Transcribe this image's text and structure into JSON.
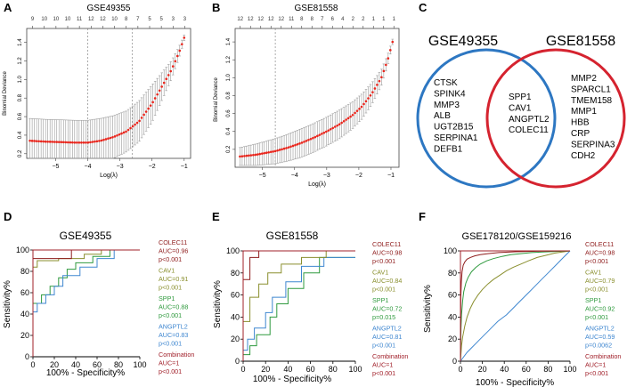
{
  "panel_letters": [
    "A",
    "B",
    "C",
    "D",
    "E",
    "F"
  ],
  "colors": {
    "lasso_points": "#e8261d",
    "lasso_bars": "#9a9a9a",
    "venn_left": "#2d77c2",
    "venn_right": "#d5232f",
    "colec11": "#8f1d1d",
    "cav1": "#8a8f2e",
    "spp1": "#2f9a3e",
    "angptl2": "#3f87d0",
    "combination": "#a1202a"
  },
  "chart_data": [
    {
      "type": "line",
      "panel": "A",
      "title": "GSE49355",
      "xlabel": "Log(λ)",
      "ylabel": "Binomial Deviance",
      "xlim": [
        -5.9,
        -0.8
      ],
      "ylim": [
        0.15,
        1.55
      ],
      "x_ticks": [
        -5,
        -4,
        -3,
        -2,
        -1
      ],
      "y_ticks": [
        0.2,
        0.4,
        0.6,
        0.8,
        1.0,
        1.2,
        1.4
      ],
      "y_tick_labels": [
        "0.2",
        "0.4",
        "0.6",
        "0.8",
        "1.0",
        "1.2",
        "1.4"
      ],
      "top_tick_labels": [
        "9",
        "10",
        "10",
        "10",
        "11",
        "12",
        "12",
        "10",
        "8",
        "7",
        "5",
        "5",
        "3",
        "3"
      ],
      "vlines": [
        -4.0,
        -2.62
      ],
      "x": [
        -5.8,
        -5.3,
        -4.8,
        -4.4,
        -4.0,
        -3.6,
        -3.2,
        -2.8,
        -2.4,
        -2.0,
        -1.7,
        -1.4,
        -1.15,
        -1.0
      ],
      "y": [
        0.34,
        0.33,
        0.325,
        0.32,
        0.32,
        0.34,
        0.38,
        0.44,
        0.55,
        0.74,
        0.92,
        1.1,
        1.3,
        1.45
      ],
      "err": [
        0.24,
        0.24,
        0.24,
        0.24,
        0.24,
        0.24,
        0.23,
        0.22,
        0.22,
        0.2,
        0.15,
        0.1,
        0.06,
        0.03
      ]
    },
    {
      "type": "line",
      "panel": "B",
      "title": "GSE81558",
      "xlabel": "Log(λ)",
      "ylabel": "Binomial Deviance",
      "xlim": [
        -5.85,
        -0.75
      ],
      "ylim": [
        0.0,
        1.55
      ],
      "x_ticks": [
        -5,
        -4,
        -3,
        -2,
        -1
      ],
      "y_ticks": [
        0.2,
        0.4,
        0.6,
        0.8,
        1.0,
        1.2,
        1.4
      ],
      "y_tick_labels": [
        "0.2",
        "0.4",
        "0.6",
        "0.8",
        "1.0",
        "1.2",
        "1.4"
      ],
      "top_tick_labels": [
        "12",
        "12",
        "12",
        "12",
        "12",
        "11",
        "8",
        "8",
        "7",
        "6",
        "4",
        "2",
        "2",
        "1",
        "1",
        "1"
      ],
      "vlines": [
        -4.6
      ],
      "x": [
        -5.7,
        -5.2,
        -4.6,
        -4.2,
        -3.8,
        -3.4,
        -3.0,
        -2.6,
        -2.2,
        -1.9,
        -1.6,
        -1.3,
        -1.1,
        -0.95
      ],
      "y": [
        0.12,
        0.14,
        0.18,
        0.22,
        0.27,
        0.33,
        0.4,
        0.48,
        0.58,
        0.68,
        0.82,
        1.0,
        1.2,
        1.4
      ],
      "err": [
        0.1,
        0.12,
        0.14,
        0.15,
        0.16,
        0.16,
        0.16,
        0.16,
        0.15,
        0.14,
        0.12,
        0.09,
        0.06,
        0.03
      ]
    },
    {
      "type": "line",
      "panel": "D",
      "title": "GSE49355",
      "xlabel": "100% - Specificity%",
      "ylabel": "Sensitivity%",
      "xlim": [
        0,
        100
      ],
      "ylim": [
        0,
        100
      ],
      "x_ticks": [
        0,
        20,
        40,
        60,
        80,
        100
      ],
      "y_ticks": [
        0,
        20,
        40,
        60,
        80,
        100
      ],
      "series": [
        {
          "name": "SPP1",
          "auc": "AUC=0.88",
          "p": "p<0.001",
          "color_key": "spp1",
          "x": [
            0,
            0,
            8,
            8,
            16,
            16,
            24,
            24,
            32,
            32,
            40,
            40,
            56,
            56,
            72,
            72,
            100
          ],
          "y": [
            0,
            50,
            50,
            58,
            58,
            66,
            66,
            74,
            74,
            82,
            82,
            88,
            88,
            94,
            94,
            100,
            100
          ]
        },
        {
          "name": "ANGPTL2",
          "auc": "AUC=0.83",
          "p": "p<0.001",
          "color_key": "angptl2",
          "x": [
            0,
            0,
            4,
            4,
            12,
            12,
            20,
            20,
            28,
            28,
            44,
            44,
            60,
            60,
            76,
            76,
            100
          ],
          "y": [
            0,
            42,
            42,
            50,
            50,
            58,
            58,
            66,
            66,
            76,
            76,
            84,
            84,
            92,
            92,
            100,
            100
          ]
        },
        {
          "name": "CAV1",
          "auc": "AUC=0.91",
          "p": "p<0.001",
          "color_key": "cav1",
          "x": [
            0,
            0,
            4,
            4,
            24,
            24,
            48,
            48,
            64,
            64,
            100
          ],
          "y": [
            0,
            84,
            84,
            90,
            90,
            92,
            92,
            96,
            96,
            100,
            100
          ]
        },
        {
          "name": "COLEC11",
          "auc": "AUC=0.96",
          "p": "p<0.001",
          "color_key": "colec11",
          "x": [
            0,
            0,
            36,
            36,
            100
          ],
          "y": [
            0,
            92,
            92,
            100,
            100
          ]
        },
        {
          "name": "Combination",
          "auc": "AUC=1",
          "p": "p<0.001",
          "color_key": "combination",
          "x": [
            0,
            0,
            100
          ],
          "y": [
            0,
            100,
            100
          ]
        }
      ]
    },
    {
      "type": "line",
      "panel": "E",
      "title": "GSE81558",
      "xlabel": "100% - Specificity%",
      "ylabel": "Sensitivity%",
      "xlim": [
        0,
        100
      ],
      "ylim": [
        0,
        100
      ],
      "x_ticks": [
        0,
        20,
        40,
        60,
        80,
        100
      ],
      "y_ticks": [
        0,
        20,
        40,
        60,
        80,
        100
      ],
      "series": [
        {
          "name": "SPP1",
          "auc": "AUC=0.72",
          "p": "p=0.015",
          "color_key": "spp1",
          "x": [
            0,
            0,
            6,
            6,
            12,
            12,
            24,
            24,
            30,
            30,
            40,
            40,
            54,
            54,
            68,
            68,
            100
          ],
          "y": [
            0,
            6,
            6,
            14,
            14,
            24,
            24,
            40,
            40,
            52,
            52,
            66,
            66,
            80,
            80,
            94,
            94
          ]
        },
        {
          "name": "ANGPTL2",
          "auc": "AUC=0.81",
          "p": "p<0.001",
          "color_key": "angptl2",
          "x": [
            0,
            0,
            4,
            4,
            10,
            10,
            20,
            20,
            26,
            26,
            38,
            38,
            52,
            52,
            72,
            72,
            100
          ],
          "y": [
            0,
            10,
            10,
            20,
            20,
            30,
            30,
            44,
            44,
            58,
            58,
            72,
            72,
            86,
            86,
            94,
            94
          ]
        },
        {
          "name": "CAV1",
          "auc": "AUC=0.84",
          "p": "p<0.001",
          "color_key": "cav1",
          "x": [
            0,
            0,
            6,
            6,
            14,
            14,
            22,
            22,
            34,
            34,
            52,
            52,
            74,
            74,
            100
          ],
          "y": [
            0,
            36,
            36,
            58,
            58,
            70,
            70,
            80,
            80,
            88,
            88,
            94,
            94,
            100,
            100
          ]
        },
        {
          "name": "COLEC11",
          "auc": "AUC=0.98",
          "p": "p<0.001",
          "color_key": "colec11",
          "x": [
            0,
            0,
            6,
            6,
            14,
            14,
            100
          ],
          "y": [
            0,
            74,
            74,
            94,
            94,
            100,
            100
          ]
        },
        {
          "name": "Combination",
          "auc": "AUC=1",
          "p": "p<0.001",
          "color_key": "combination",
          "x": [
            0,
            0,
            100
          ],
          "y": [
            0,
            100,
            100
          ]
        }
      ]
    },
    {
      "type": "line",
      "panel": "F",
      "title": "GSE178120/GSE159216",
      "xlabel": "100% - Specificity%",
      "ylabel": "Sensitivity%",
      "xlim": [
        0,
        100
      ],
      "ylim": [
        0,
        100
      ],
      "x_ticks": [
        0,
        20,
        40,
        60,
        80,
        100
      ],
      "y_ticks": [
        0,
        20,
        40,
        60,
        80,
        100
      ],
      "series": [
        {
          "name": "ANGPTL2",
          "auc": "AUC=0.59",
          "p": "p=0.0062",
          "color_key": "angptl2",
          "x": [
            0,
            3,
            6,
            10,
            14,
            18,
            22,
            26,
            30,
            34,
            38,
            42,
            46,
            50,
            54,
            58,
            62,
            66,
            70,
            74,
            78,
            82,
            86,
            90,
            94,
            98,
            100
          ],
          "y": [
            0,
            4,
            8,
            12,
            16,
            20,
            24,
            28,
            32,
            36,
            39,
            42,
            46,
            50,
            54,
            58,
            62,
            66,
            70,
            74,
            78,
            82,
            86,
            90,
            94,
            98,
            100
          ]
        },
        {
          "name": "CAV1",
          "auc": "AUC=0.79",
          "p": "p<0.001",
          "color_key": "cav1",
          "x": [
            0,
            1,
            2,
            4,
            6,
            9,
            12,
            16,
            20,
            25,
            30,
            36,
            42,
            48,
            55,
            62,
            70,
            78,
            86,
            93,
            100
          ],
          "y": [
            0,
            14,
            22,
            32,
            40,
            48,
            54,
            60,
            65,
            70,
            74,
            78,
            82,
            85,
            88,
            91,
            94,
            96,
            98,
            99,
            100
          ]
        },
        {
          "name": "SPP1",
          "auc": "AUC=0.92",
          "p": "p<0.001",
          "color_key": "spp1",
          "x": [
            0,
            0.5,
            1,
            2,
            3,
            5,
            7,
            10,
            14,
            18,
            24,
            30,
            38,
            46,
            55,
            65,
            75,
            88,
            100
          ],
          "y": [
            0,
            30,
            42,
            55,
            63,
            71,
            76,
            81,
            85,
            88,
            91,
            93,
            95,
            96.5,
            97.5,
            98.5,
            99,
            99.5,
            100
          ]
        },
        {
          "name": "COLEC11",
          "auc": "AUC=0.98",
          "p": "p<0.001",
          "color_key": "colec11",
          "x": [
            0,
            0.3,
            0.8,
            1.5,
            2.5,
            4,
            6,
            9,
            13,
            18,
            25,
            35,
            50,
            70,
            100
          ],
          "y": [
            0,
            58,
            72,
            81,
            87,
            90,
            92.5,
            94,
            95.5,
            96.5,
            97.5,
            98.5,
            99.2,
            99.7,
            100
          ]
        },
        {
          "name": "Combination",
          "auc": "AUC=1",
          "p": "p<0.001",
          "color_key": "combination",
          "x": [
            0,
            0,
            100
          ],
          "y": [
            0,
            100,
            100
          ]
        }
      ]
    }
  ],
  "venn": {
    "left_title": "GSE49355",
    "right_title": "GSE81558",
    "left_only": [
      "CTSK",
      "SPINK4",
      "MMP3",
      "ALB",
      "UGT2B15",
      "SERPINA1",
      "DEFB1"
    ],
    "shared": [
      "SPP1",
      "CAV1",
      "ANGPTL2",
      "COLEC11"
    ],
    "right_only": [
      "MMP2",
      "SPARCL1",
      "TMEM158",
      "MMP1",
      "HBB",
      "CRP",
      "SERPINA3",
      "CDH2"
    ]
  }
}
